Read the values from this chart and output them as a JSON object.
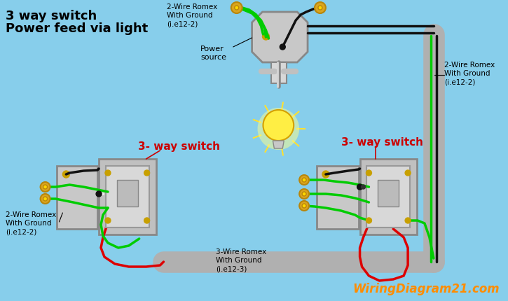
{
  "bg_color": "#87CEEB",
  "title_line1": "3 way switch",
  "title_line2": "Power feed via light",
  "title_color": "#000000",
  "title_fontsize": 13,
  "label_3way_color": "#CC0000",
  "label_3way_text": "3- way switch",
  "watermark_text": "WiringDiagram21.com",
  "watermark_color": "#FF8C00",
  "watermark_fontsize": 12,
  "wire_green": "#00CC00",
  "wire_black": "#111111",
  "wire_red": "#DD0000",
  "conduit_color": "#B0B0B0",
  "conduit_lw": 22,
  "label_2wire_top": "2-Wire Romex\nWith Ground\n(i.e12-2)",
  "label_2wire_right": "2-Wire Romex\nWith Ground\n(i.e12-2)",
  "label_2wire_left": "2-Wire Romex\nWith Ground\n(i.e12-2)",
  "label_3wire": "3-Wire Romex\nWith Ground\n(i.e12-3)",
  "label_power": "Power\nsource"
}
